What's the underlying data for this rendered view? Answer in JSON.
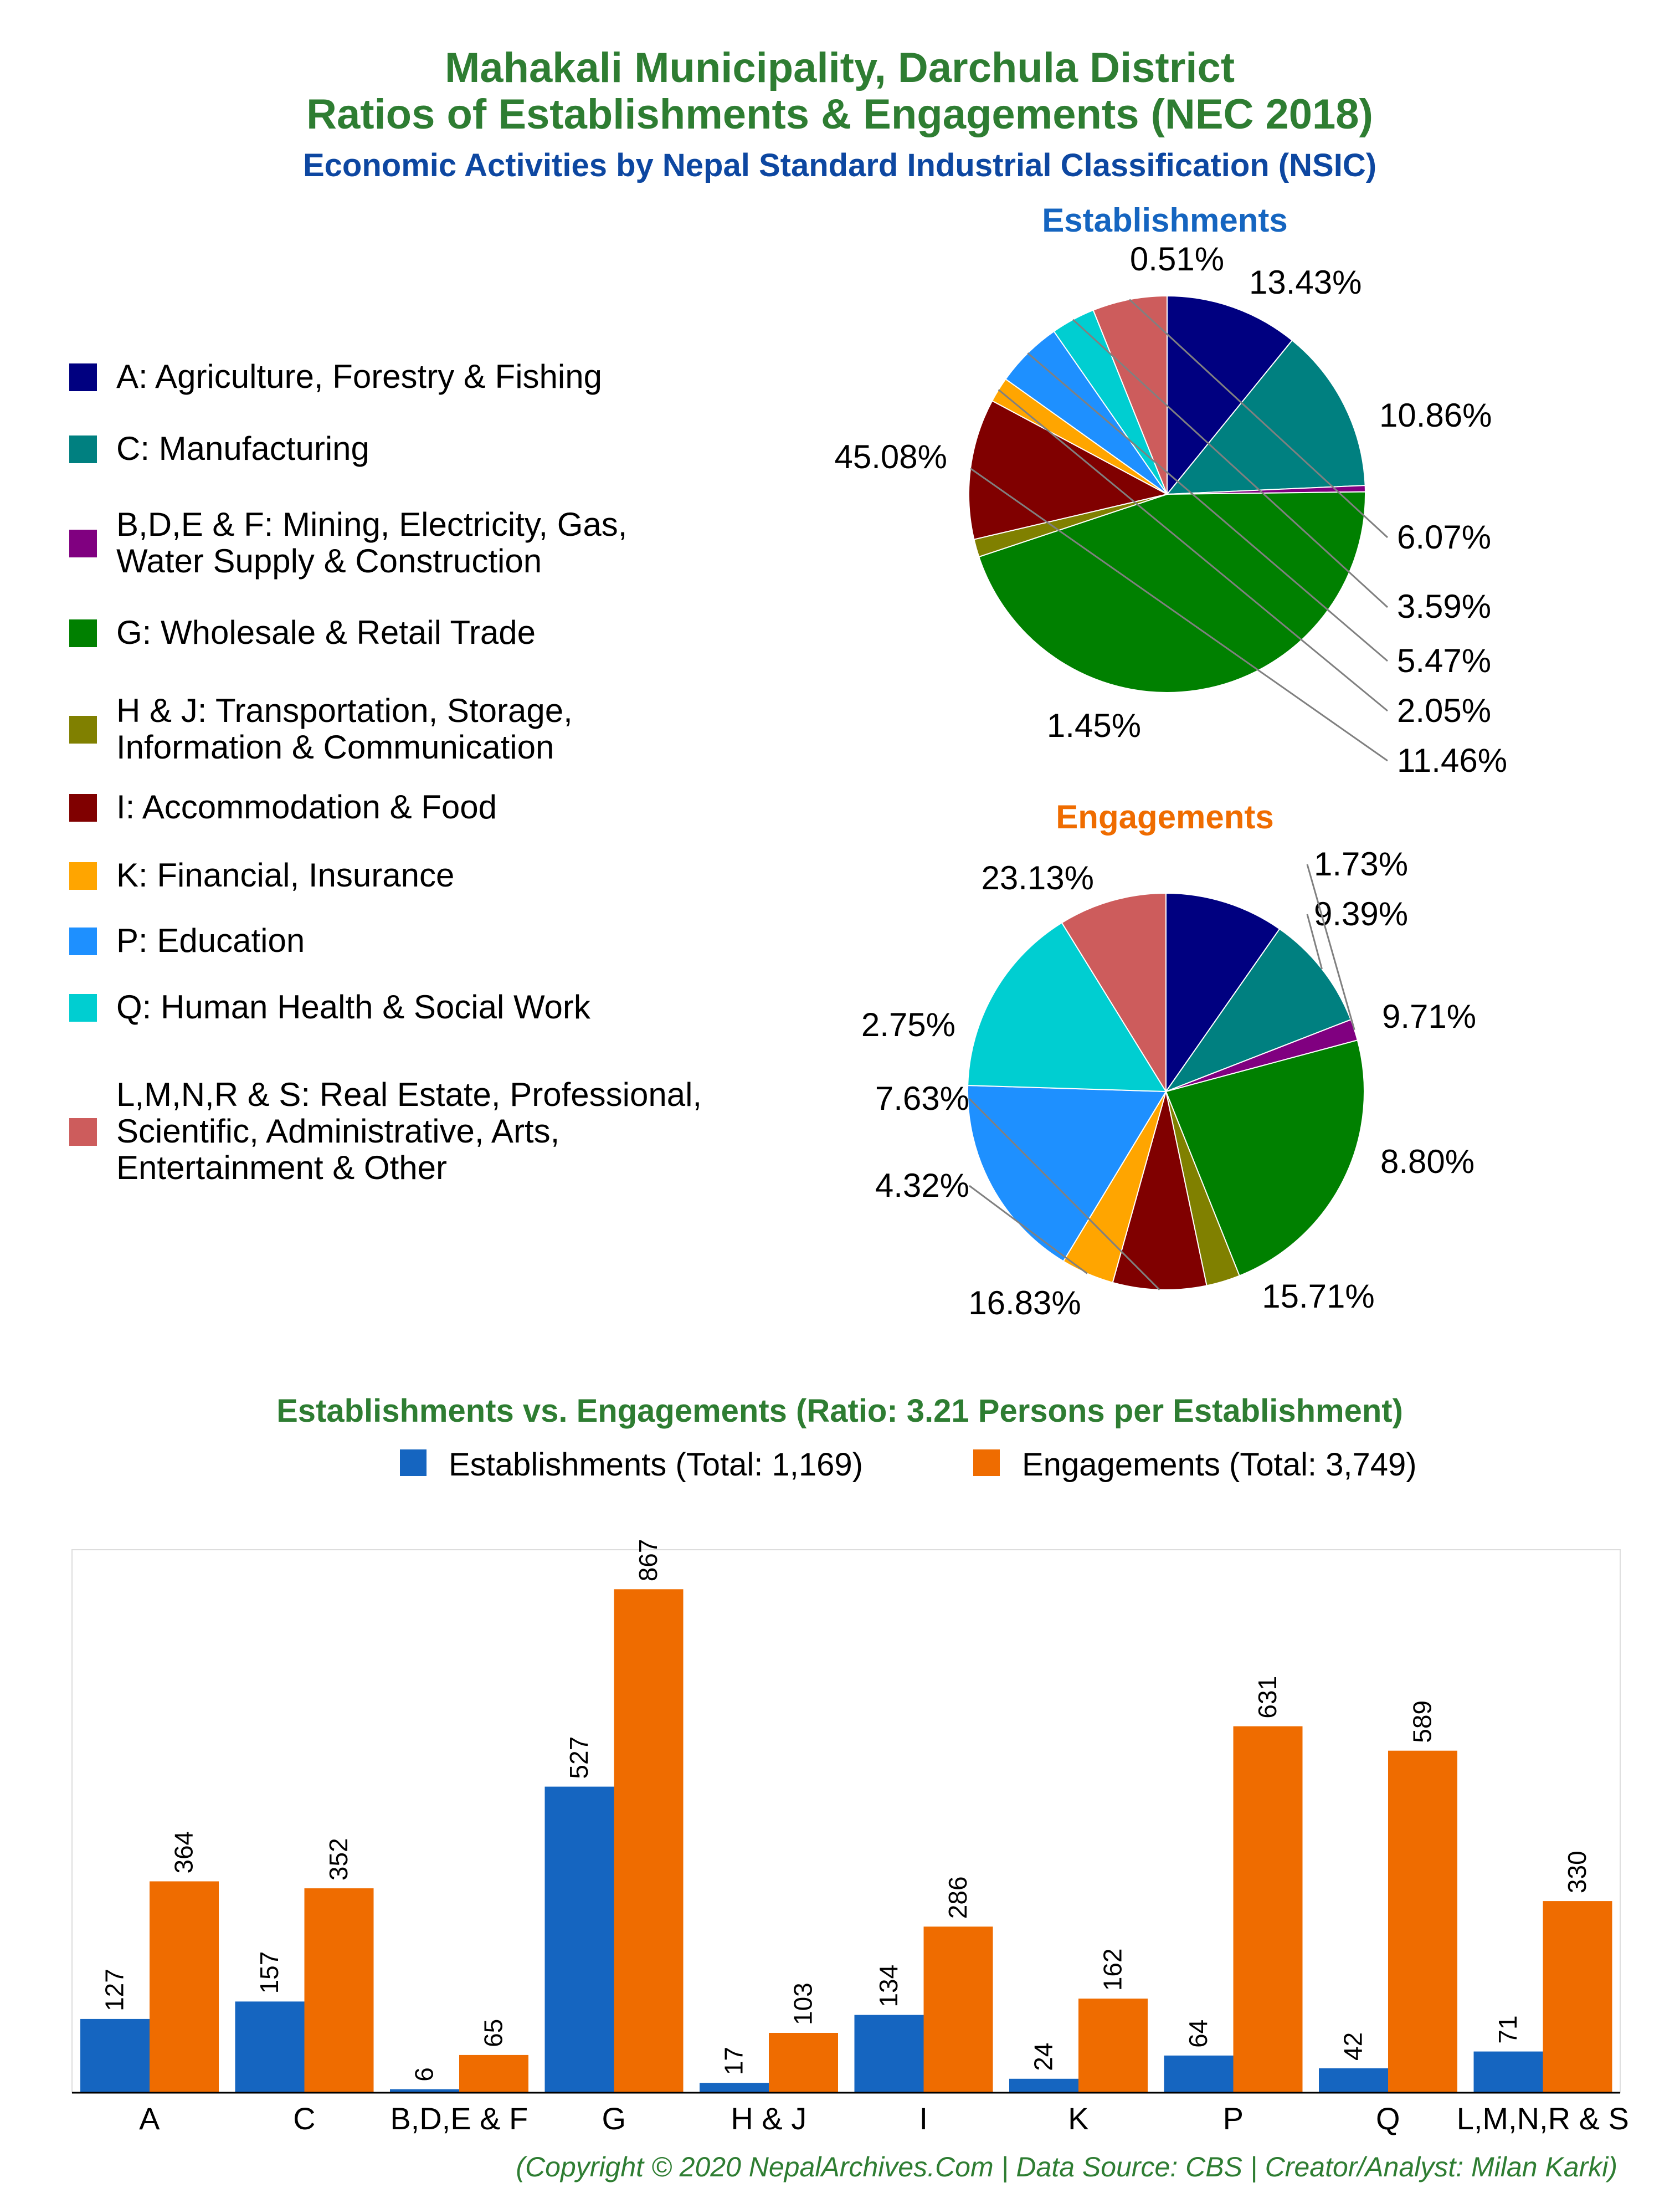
{
  "title_line1": "Mahakali Municipality, Darchula District",
  "title_line2": "Ratios of Establishments & Engagements (NEC 2018)",
  "subtitle": "Economic Activities by Nepal Standard Industrial Classification (NSIC)",
  "legend": [
    {
      "lines": [
        "A: Agriculture, Forestry & Fishing"
      ],
      "color": "#000080"
    },
    {
      "lines": [
        "C: Manufacturing"
      ],
      "color": "#008080"
    },
    {
      "lines": [
        "B,D,E & F: Mining, Electricity, Gas,",
        "Water Supply & Construction"
      ],
      "color": "#800080"
    },
    {
      "lines": [
        "G: Wholesale & Retail Trade"
      ],
      "color": "#008000"
    },
    {
      "lines": [
        "H & J: Transportation, Storage,",
        "Information & Communication"
      ],
      "color": "#808000"
    },
    {
      "lines": [
        "I: Accommodation & Food"
      ],
      "color": "#800000"
    },
    {
      "lines": [
        "K: Financial, Insurance"
      ],
      "color": "#FFA500"
    },
    {
      "lines": [
        "P: Education"
      ],
      "color": "#1E90FF"
    },
    {
      "lines": [
        "Q: Human Health & Social Work"
      ],
      "color": "#00CED1"
    },
    {
      "lines": [
        "L,M,N,R & S: Real Estate, Professional,",
        "Scientific, Administrative, Arts,",
        "Entertainment & Other"
      ],
      "color": "#CD5C5C"
    }
  ],
  "chart_data": [
    {
      "type": "pie",
      "title": "Establishments",
      "title_color": "#1565C0",
      "categories": [
        "A",
        "C",
        "B,D,E & F",
        "G",
        "H & J",
        "I",
        "K",
        "P",
        "Q",
        "L,M,N,R & S"
      ],
      "values": [
        127,
        157,
        6,
        527,
        17,
        134,
        24,
        64,
        42,
        71
      ],
      "labels": [
        "10.86%",
        "13.43%",
        "0.51%",
        "45.08%",
        "1.45%",
        "11.46%",
        "2.05%",
        "5.47%",
        "3.59%",
        "6.07%"
      ]
    },
    {
      "type": "pie",
      "title": "Engagements",
      "title_color": "#EF6C00",
      "categories": [
        "A",
        "C",
        "B,D,E & F",
        "G",
        "H & J",
        "I",
        "K",
        "P",
        "Q",
        "L,M,N,R & S"
      ],
      "values": [
        364,
        352,
        65,
        867,
        103,
        286,
        162,
        631,
        589,
        330
      ],
      "labels": [
        "9.71%",
        "9.39%",
        "1.73%",
        "23.13%",
        "2.75%",
        "7.63%",
        "4.32%",
        "16.83%",
        "15.71%",
        "8.80%"
      ]
    },
    {
      "type": "bar",
      "title": "Establishments vs. Engagements (Ratio: 3.21 Persons per Establishment)",
      "categories": [
        "A",
        "C",
        "B,D,E & F",
        "G",
        "H & J",
        "I",
        "K",
        "P",
        "Q",
        "L,M,N,R & S"
      ],
      "series": [
        {
          "name": "Establishments (Total: 1,169)",
          "color": "#1565C0",
          "values": [
            127,
            157,
            6,
            527,
            17,
            134,
            24,
            64,
            42,
            71
          ]
        },
        {
          "name": "Engagements (Total: 3,749)",
          "color": "#EF6C00",
          "values": [
            364,
            352,
            65,
            867,
            103,
            286,
            162,
            631,
            589,
            330
          ]
        }
      ],
      "ylim": [
        0,
        935
      ],
      "grid": false,
      "legend_position": "top"
    }
  ],
  "footer": "(Copyright © 2020 NepalArchives.Com | Data Source: CBS | Creator/Analyst: Milan Karki)",
  "colors": {
    "title": "#2E7D32",
    "subtitle": "#0D47A1",
    "footer": "#2E7D32"
  }
}
